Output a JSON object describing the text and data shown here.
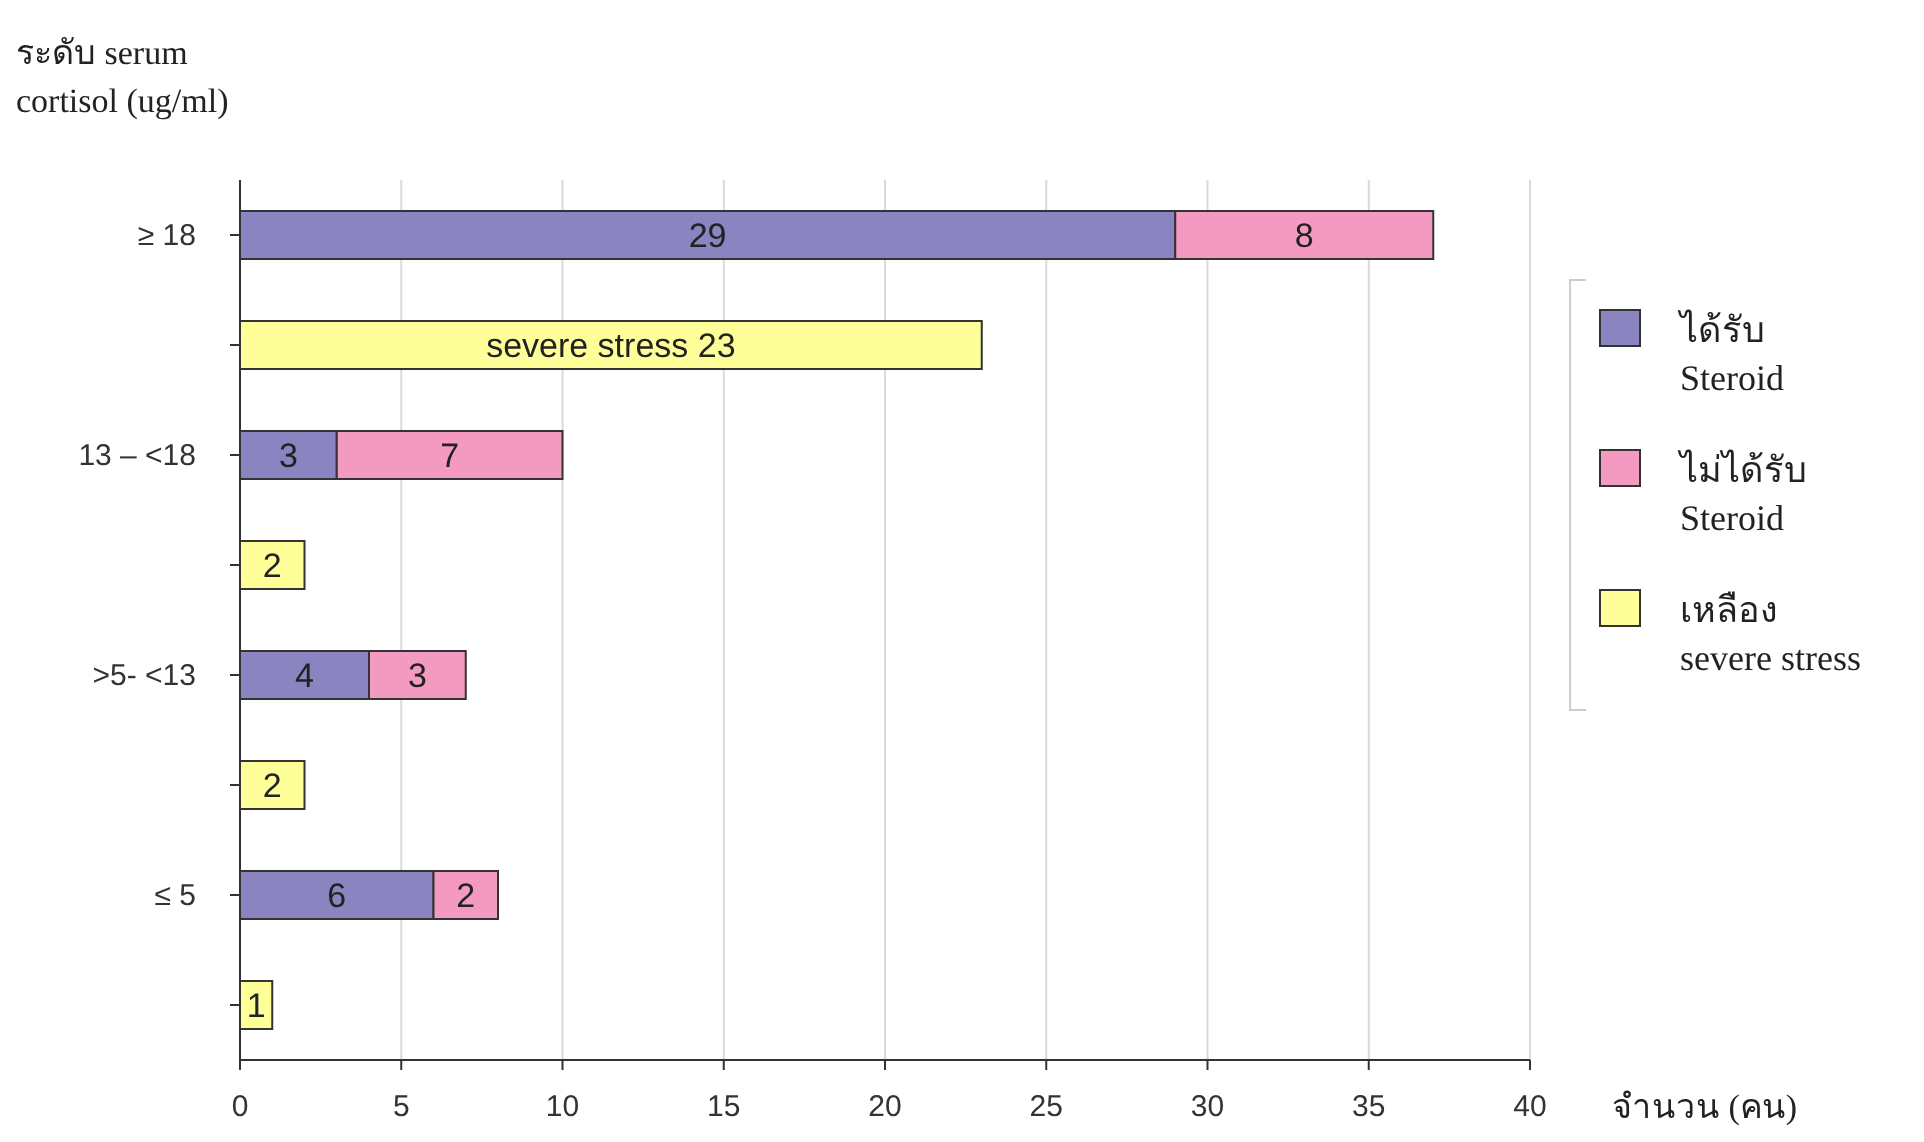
{
  "chart_data": {
    "type": "bar",
    "orientation": "horizontal",
    "stacked": true,
    "ylabel": "ระดับ serum\ncortisol (ug/ml)",
    "xlabel": "จำนวน (คน)",
    "categories": [
      "≥ 18",
      null,
      "13 – <18",
      null,
      ">5- <13",
      null,
      "≤ 5",
      null
    ],
    "series": [
      {
        "name": "ได้รับ\nSteroid",
        "color": "#8a84c0",
        "values": [
          29,
          null,
          3,
          null,
          4,
          null,
          6,
          null
        ],
        "value_labels": [
          "29",
          null,
          "3",
          null,
          "4",
          null,
          "6",
          null
        ]
      },
      {
        "name": "ไม่ได้รับ\nSteroid",
        "color": "#f49ac1",
        "values": [
          8,
          null,
          7,
          null,
          3,
          null,
          2,
          null
        ],
        "value_labels": [
          "8",
          null,
          "7",
          null,
          "3",
          null,
          "2",
          null
        ]
      },
      {
        "name": "เหลือง\nsevere stress",
        "color": "#ffff99",
        "values": [
          null,
          23,
          null,
          2,
          null,
          2,
          null,
          1
        ],
        "value_labels": [
          null,
          "severe stress 23",
          null,
          "2",
          null,
          "2",
          null,
          "1"
        ]
      }
    ],
    "xlim": [
      0,
      40
    ],
    "xticks": [
      0,
      5,
      10,
      15,
      20,
      25,
      30,
      35,
      40
    ],
    "grid": "x",
    "legend": "right"
  }
}
